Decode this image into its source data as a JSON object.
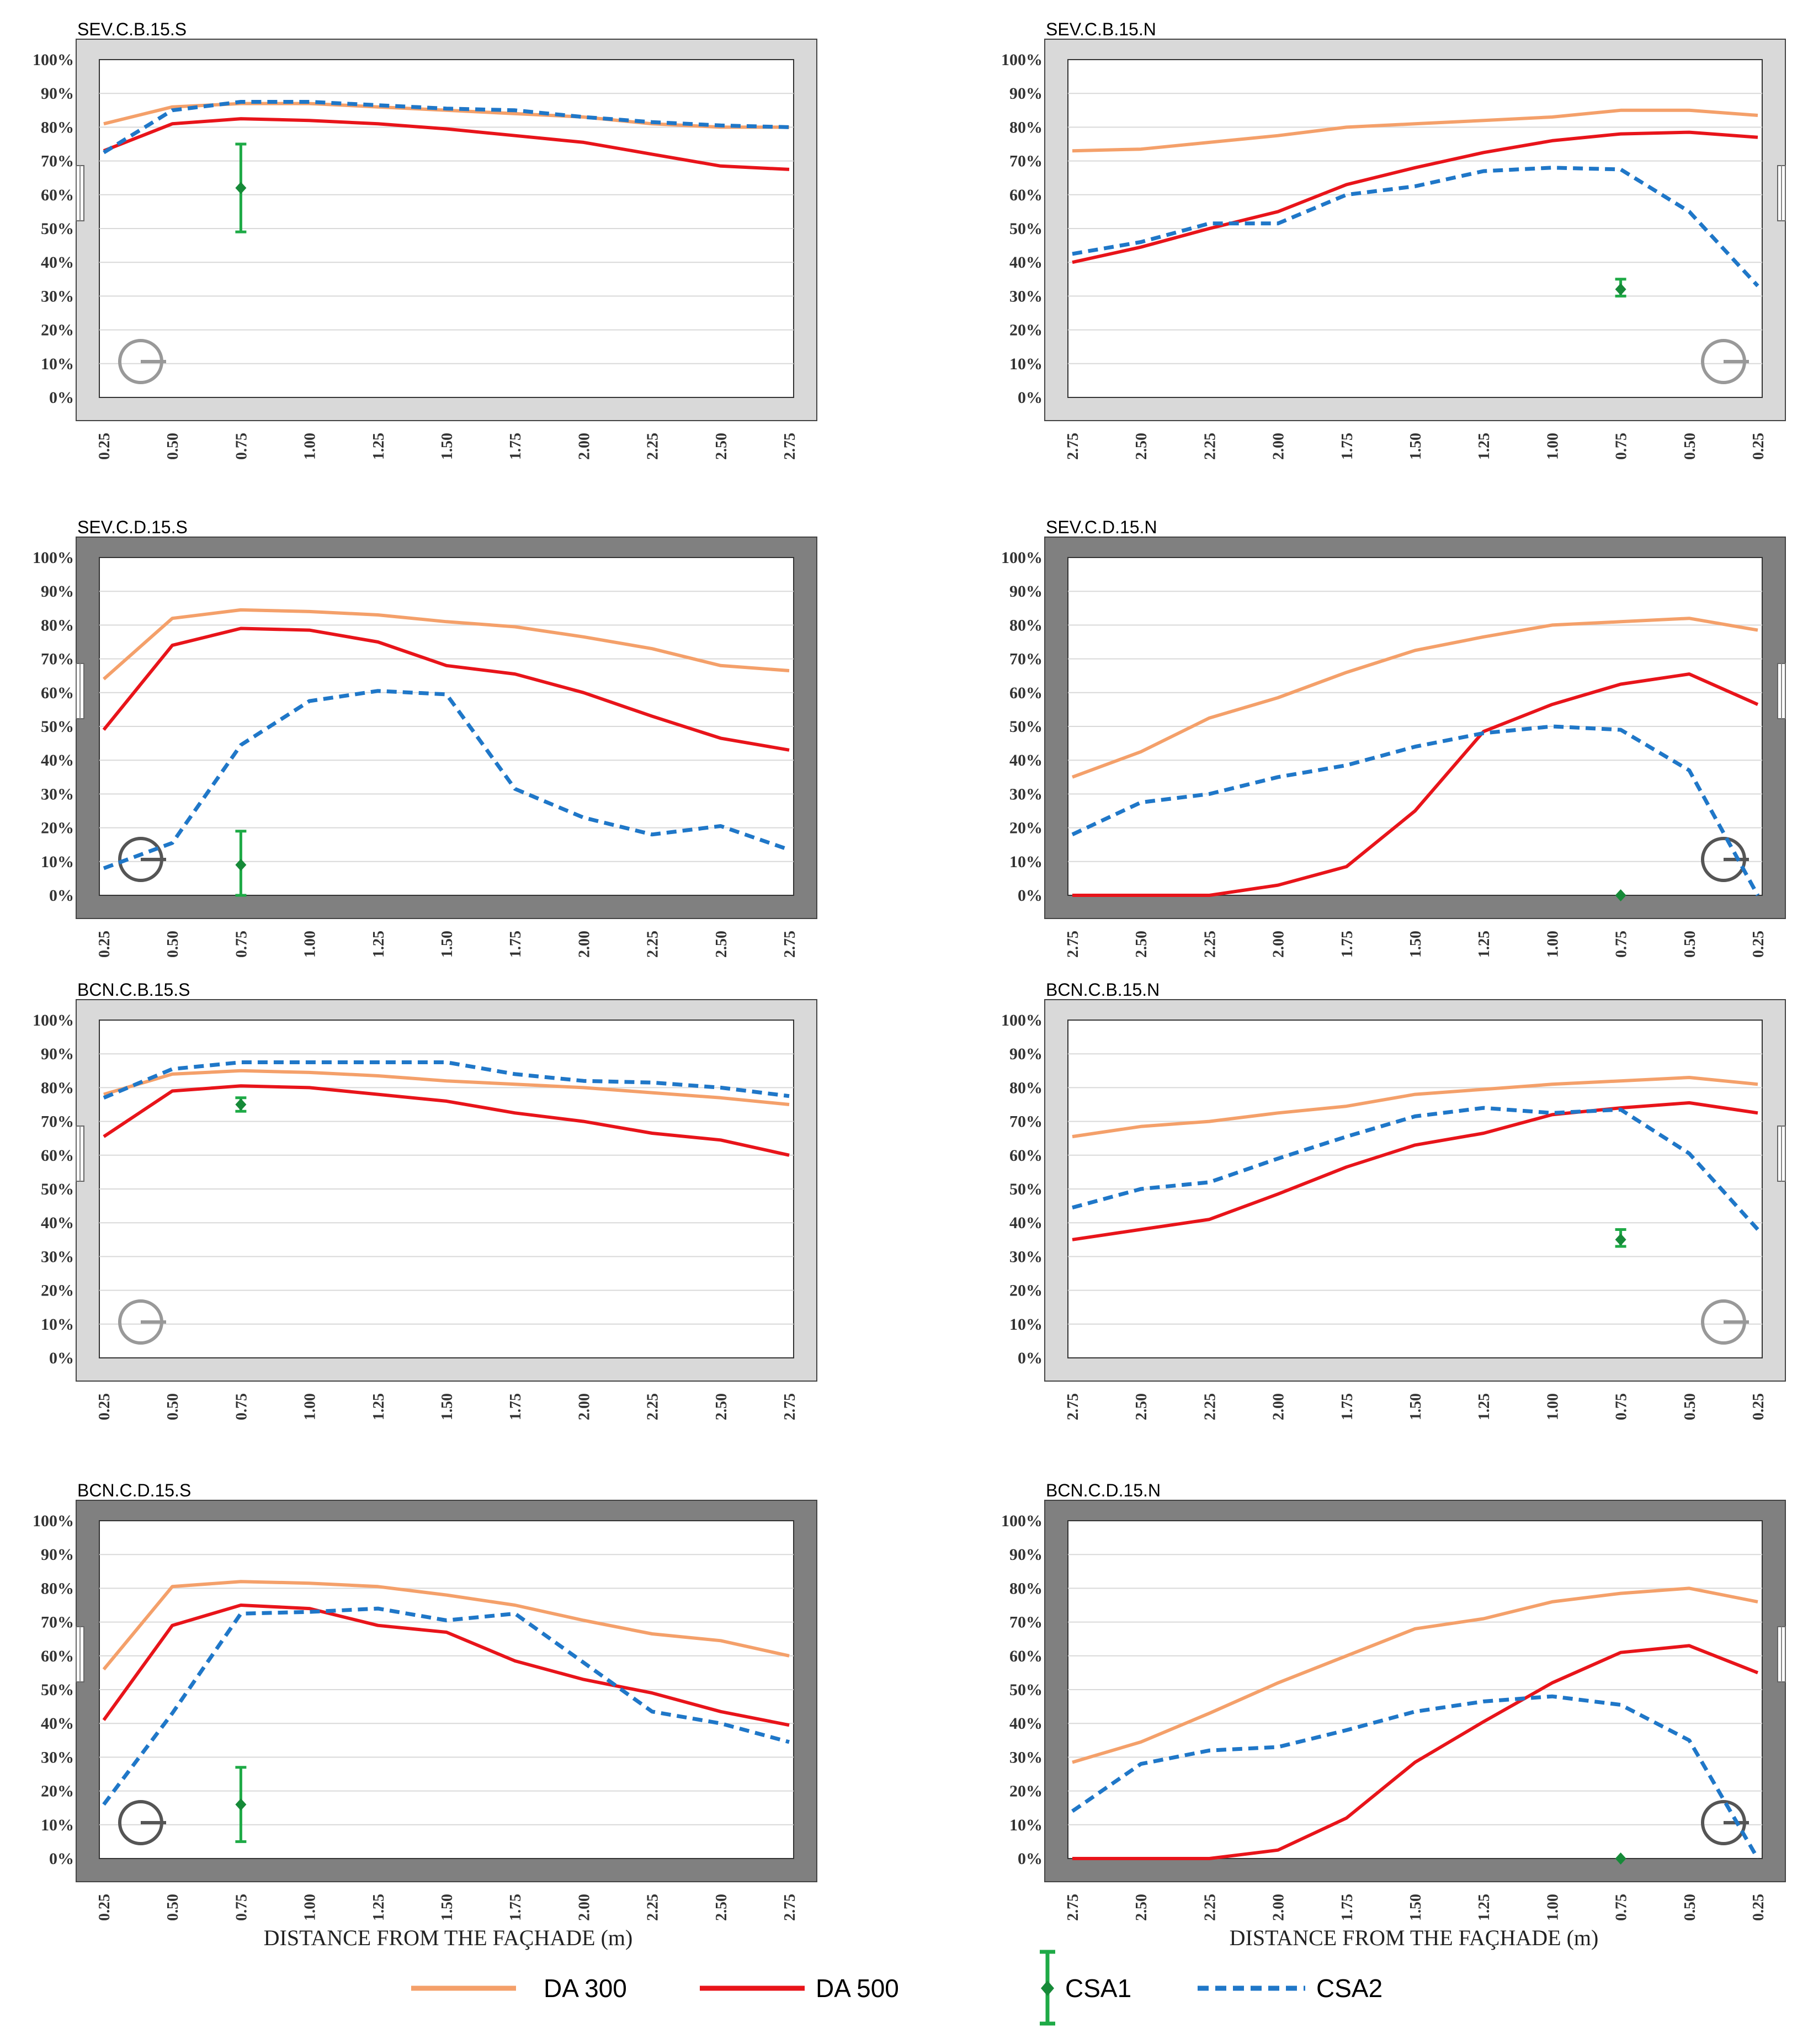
{
  "figure": {
    "xlabel": "DISTANCE FROM THE FAÇHADE (m)"
  },
  "legend": [
    {
      "name": "DA 300",
      "color": "#F4A06A",
      "style": "solid"
    },
    {
      "name": "DA 500",
      "color": "#E8141A",
      "style": "solid"
    },
    {
      "name": "CSA1",
      "color": "#1EAA46",
      "style": "errorbar"
    },
    {
      "name": "CSA2",
      "color": "#1F77C8",
      "style": "dashed"
    }
  ],
  "colors": {
    "frame_light": "#D9D9D9",
    "frame_dark": "#808080",
    "grid": "#D9D9D9",
    "da300": "#F4A06A",
    "da500": "#E8141A",
    "csa1": "#1EAA46",
    "csa2": "#1F77C8"
  },
  "chart_data": [
    {
      "type": "line",
      "title": "SEV.C.B.15.S",
      "orientation": "S",
      "frame": "light",
      "categories": [
        "0.25",
        "0.50",
        "0.75",
        "1.00",
        "1.25",
        "1.50",
        "1.75",
        "2.00",
        "2.25",
        "2.50",
        "2.75"
      ],
      "yticks": [
        "0%",
        "10%",
        "20%",
        "30%",
        "40%",
        "50%",
        "60%",
        "70%",
        "80%",
        "90%",
        "100%"
      ],
      "ylim": [
        0,
        100
      ],
      "series": [
        {
          "name": "DA 300",
          "values": [
            81,
            86,
            87,
            87,
            86,
            85,
            84,
            83,
            81,
            80,
            80
          ]
        },
        {
          "name": "DA 500",
          "values": [
            73,
            81,
            82.5,
            82,
            81,
            79.5,
            77.5,
            75.5,
            72,
            68.5,
            67.5
          ]
        },
        {
          "name": "CSA2",
          "values": [
            72.5,
            85,
            87.5,
            87.5,
            86.5,
            85.5,
            85,
            83,
            81.5,
            80.5,
            80
          ]
        }
      ],
      "csa1": {
        "x": "0.75",
        "value": 62,
        "low": 49,
        "high": 75
      }
    },
    {
      "type": "line",
      "title": "SEV.C.B.15.N",
      "orientation": "N",
      "frame": "light",
      "categories": [
        "2.75",
        "2.50",
        "2.25",
        "2.00",
        "1.75",
        "1.50",
        "1.25",
        "1.00",
        "0.75",
        "0.50",
        "0.25"
      ],
      "yticks": [
        "0%",
        "10%",
        "20%",
        "30%",
        "40%",
        "50%",
        "60%",
        "70%",
        "80%",
        "90%",
        "100%"
      ],
      "ylim": [
        0,
        100
      ],
      "series": [
        {
          "name": "DA 300",
          "values": [
            73,
            73.5,
            75.5,
            77.5,
            80,
            81,
            82,
            83,
            85,
            85,
            83.5
          ]
        },
        {
          "name": "DA 500",
          "values": [
            40,
            44.5,
            50,
            55,
            63,
            68,
            72.5,
            76,
            78,
            78.5,
            77
          ]
        },
        {
          "name": "CSA2",
          "values": [
            42.5,
            46,
            51.5,
            51.5,
            60,
            62.5,
            67,
            68,
            67.5,
            55,
            33
          ]
        }
      ],
      "csa1": {
        "x": "0.75",
        "value": 32,
        "low": 30,
        "high": 35
      }
    },
    {
      "type": "line",
      "title": "SEV.C.D.15.S",
      "orientation": "S",
      "frame": "dark",
      "categories": [
        "0.25",
        "0.50",
        "0.75",
        "1.00",
        "1.25",
        "1.50",
        "1.75",
        "2.00",
        "2.25",
        "2.50",
        "2.75"
      ],
      "yticks": [
        "0%",
        "10%",
        "20%",
        "30%",
        "40%",
        "50%",
        "60%",
        "70%",
        "80%",
        "90%",
        "100%"
      ],
      "ylim": [
        0,
        100
      ],
      "series": [
        {
          "name": "DA 300",
          "values": [
            64,
            82,
            84.5,
            84,
            83,
            81,
            79.5,
            76.5,
            73,
            68,
            66.5
          ]
        },
        {
          "name": "DA 500",
          "values": [
            49,
            74,
            79,
            78.5,
            75,
            68,
            65.5,
            60,
            53,
            46.5,
            43
          ]
        },
        {
          "name": "CSA2",
          "values": [
            8,
            15.5,
            44.5,
            57.5,
            60.5,
            59.5,
            31.5,
            23,
            18,
            20.5,
            13.5
          ]
        }
      ],
      "csa1": {
        "x": "0.75",
        "value": 9,
        "low": 0,
        "high": 19
      }
    },
    {
      "type": "line",
      "title": "SEV.C.D.15.N",
      "orientation": "N",
      "frame": "dark",
      "categories": [
        "2.75",
        "2.50",
        "2.25",
        "2.00",
        "1.75",
        "1.50",
        "1.25",
        "1.00",
        "0.75",
        "0.50",
        "0.25"
      ],
      "yticks": [
        "0%",
        "10%",
        "20%",
        "30%",
        "40%",
        "50%",
        "60%",
        "70%",
        "80%",
        "90%",
        "100%"
      ],
      "ylim": [
        0,
        100
      ],
      "series": [
        {
          "name": "DA 300",
          "values": [
            35,
            42.5,
            52.5,
            58.5,
            66,
            72.5,
            76.5,
            80,
            81,
            82,
            78.5
          ]
        },
        {
          "name": "DA 500",
          "values": [
            0,
            0,
            0,
            3,
            8.5,
            25,
            48.5,
            56.5,
            62.5,
            65.5,
            56.5
          ]
        },
        {
          "name": "CSA2",
          "values": [
            18,
            27.5,
            30,
            35,
            38.5,
            44,
            48,
            50,
            49,
            37,
            0
          ]
        }
      ],
      "csa1": {
        "x": "0.75",
        "value": 0,
        "low": 0,
        "high": 0
      }
    },
    {
      "type": "line",
      "title": "BCN.C.B.15.S",
      "orientation": "S",
      "frame": "light",
      "categories": [
        "0.25",
        "0.50",
        "0.75",
        "1.00",
        "1.25",
        "1.50",
        "1.75",
        "2.00",
        "2.25",
        "2.50",
        "2.75"
      ],
      "yticks": [
        "0%",
        "10%",
        "20%",
        "30%",
        "40%",
        "50%",
        "60%",
        "70%",
        "80%",
        "90%",
        "100%"
      ],
      "ylim": [
        0,
        100
      ],
      "series": [
        {
          "name": "DA 300",
          "values": [
            78,
            84,
            85,
            84.5,
            83.5,
            82,
            81,
            80,
            78.5,
            77,
            75
          ]
        },
        {
          "name": "DA 500",
          "values": [
            65.5,
            79,
            80.5,
            80,
            78,
            76,
            72.5,
            70,
            66.5,
            64.5,
            60
          ]
        },
        {
          "name": "CSA2",
          "values": [
            77,
            85.5,
            87.5,
            87.5,
            87.5,
            87.5,
            84,
            82,
            81.5,
            80,
            77.5
          ]
        }
      ],
      "csa1": {
        "x": "0.75",
        "value": 75,
        "low": 73,
        "high": 77
      }
    },
    {
      "type": "line",
      "title": "BCN.C.B.15.N",
      "orientation": "N",
      "frame": "light",
      "categories": [
        "2.75",
        "2.50",
        "2.25",
        "2.00",
        "1.75",
        "1.50",
        "1.25",
        "1.00",
        "0.75",
        "0.50",
        "0.25"
      ],
      "yticks": [
        "0%",
        "10%",
        "20%",
        "30%",
        "40%",
        "50%",
        "60%",
        "70%",
        "80%",
        "90%",
        "100%"
      ],
      "ylim": [
        0,
        100
      ],
      "series": [
        {
          "name": "DA 300",
          "values": [
            65.5,
            68.5,
            70,
            72.5,
            74.5,
            78,
            79.5,
            81,
            82,
            83,
            81
          ]
        },
        {
          "name": "DA 500",
          "values": [
            35,
            38,
            41,
            48.5,
            56.5,
            63,
            66.5,
            72,
            74,
            75.5,
            72.5
          ]
        },
        {
          "name": "CSA2",
          "values": [
            44.5,
            50,
            52,
            59,
            65.5,
            71.5,
            74,
            72.5,
            73.5,
            60.5,
            38
          ]
        }
      ],
      "csa1": {
        "x": "0.75",
        "value": 35,
        "low": 33,
        "high": 38
      }
    },
    {
      "type": "line",
      "title": "BCN.C.D.15.S",
      "orientation": "S",
      "frame": "dark",
      "categories": [
        "0.25",
        "0.50",
        "0.75",
        "1.00",
        "1.25",
        "1.50",
        "1.75",
        "2.00",
        "2.25",
        "2.50",
        "2.75"
      ],
      "yticks": [
        "0%",
        "10%",
        "20%",
        "30%",
        "40%",
        "50%",
        "60%",
        "70%",
        "80%",
        "90%",
        "100%"
      ],
      "ylim": [
        0,
        100
      ],
      "series": [
        {
          "name": "DA 300",
          "values": [
            56,
            80.5,
            82,
            81.5,
            80.5,
            78,
            75,
            70.5,
            66.5,
            64.5,
            60
          ]
        },
        {
          "name": "DA 500",
          "values": [
            41,
            69,
            75,
            74,
            69,
            67,
            58.5,
            53,
            49,
            43.5,
            39.5
          ]
        },
        {
          "name": "CSA2",
          "values": [
            16,
            43,
            72.5,
            73,
            74,
            70.5,
            72.5,
            58,
            43.5,
            40,
            34.5
          ]
        }
      ],
      "csa1": {
        "x": "0.75",
        "value": 16,
        "low": 5,
        "high": 27
      }
    },
    {
      "type": "line",
      "title": "BCN.C.D.15.N",
      "orientation": "N",
      "frame": "dark",
      "categories": [
        "2.75",
        "2.50",
        "2.25",
        "2.00",
        "1.75",
        "1.50",
        "1.25",
        "1.00",
        "0.75",
        "0.50",
        "0.25"
      ],
      "yticks": [
        "0%",
        "10%",
        "20%",
        "30%",
        "40%",
        "50%",
        "60%",
        "70%",
        "80%",
        "90%",
        "100%"
      ],
      "ylim": [
        0,
        100
      ],
      "series": [
        {
          "name": "DA 300",
          "values": [
            28.5,
            34.5,
            43,
            52,
            60,
            68,
            71,
            76,
            78.5,
            80,
            76
          ]
        },
        {
          "name": "DA 500",
          "values": [
            0,
            0,
            0,
            2.5,
            12,
            28.5,
            40.5,
            52,
            61,
            63,
            55
          ]
        },
        {
          "name": "CSA2",
          "values": [
            14,
            28,
            32,
            33,
            38,
            43.5,
            46.5,
            48,
            45.5,
            35,
            0
          ]
        }
      ],
      "csa1": {
        "x": "0.75",
        "value": 0,
        "low": 0,
        "high": 0
      }
    }
  ]
}
